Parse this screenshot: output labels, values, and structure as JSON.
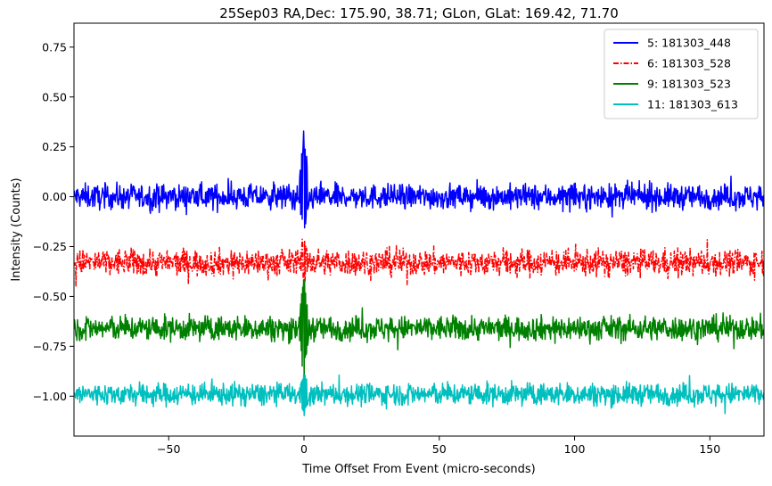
{
  "chart_data": {
    "type": "line",
    "title": "25Sep03 RA,Dec:  175.90,  38.71; GLon, GLat:  169.42,  71.70",
    "xlabel": "Time Offset From Event (micro-seconds)",
    "ylabel": "Intensity (Counts)",
    "xlim": [
      -85,
      170
    ],
    "ylim": [
      -1.2,
      0.87
    ],
    "xticks": [
      -50,
      0,
      50,
      100,
      150
    ],
    "xtick_labels": [
      "−50",
      "0",
      "50",
      "100",
      "150"
    ],
    "yticks": [
      0.75,
      0.5,
      0.25,
      0.0,
      -0.25,
      -0.5,
      -0.75,
      -1.0
    ],
    "ytick_labels": [
      "0.75",
      "0.50",
      "0.25",
      "0.00",
      "−0.25",
      "−0.50",
      "−0.75",
      "−1.00"
    ],
    "legend_position": "top-right",
    "series": [
      {
        "name": "5: 181303_448",
        "label": "  5: 181303_448",
        "color": "#0000ff",
        "style": "solid",
        "baseline": 0.0,
        "noise_amplitude": 0.055,
        "spike_peak": 0.37,
        "spike_min": -0.2
      },
      {
        "name": "6: 181303_528",
        "label": "  6: 181303_528",
        "color": "#ff0000",
        "style": "dashdot",
        "baseline": -0.33,
        "noise_amplitude": 0.06,
        "spike_peak": -0.16,
        "spike_min": -0.45
      },
      {
        "name": "9: 181303_523",
        "label": "  9: 181303_523",
        "color": "#008000",
        "style": "solid",
        "baseline": -0.66,
        "noise_amplitude": 0.055,
        "spike_peak": -0.37,
        "spike_min": -0.95
      },
      {
        "name": "11: 181303_613",
        "label": "11: 181303_613",
        "color": "#00bfbf",
        "style": "solid",
        "baseline": -0.99,
        "noise_amplitude": 0.05,
        "spike_peak": -0.85,
        "spike_min": -1.14
      }
    ]
  }
}
